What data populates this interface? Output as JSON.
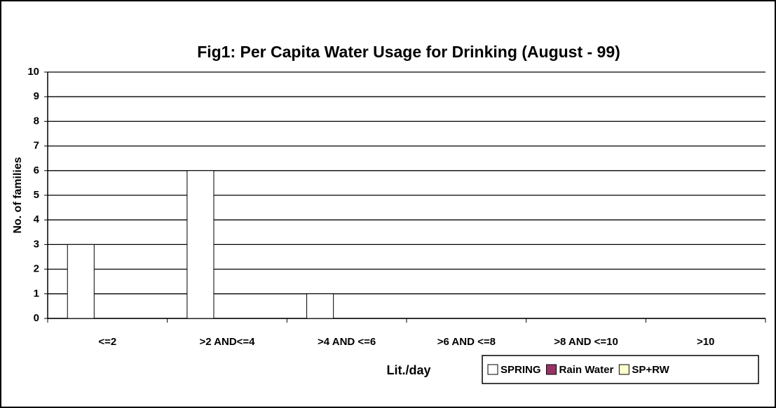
{
  "chart_data": {
    "type": "bar",
    "title": "Fig1: Per Capita Water Usage for Drinking (August - 99)",
    "x_label": "Lit./day",
    "y_label": "No. of families",
    "categories": [
      "<=2",
      ">2 AND<=4",
      ">4 AND <=6",
      ">6 AND <=8",
      ">8 AND <=10",
      ">10"
    ],
    "series": [
      {
        "name": "SPRING",
        "color": "#ffffff",
        "values": [
          3,
          6,
          1,
          0,
          0,
          0
        ]
      },
      {
        "name": "Rain Water",
        "color": "#993366",
        "values": [
          0,
          0,
          0,
          0,
          0,
          0
        ]
      },
      {
        "name": "SP+RW",
        "color": "#ffffcc",
        "values": [
          0,
          0,
          0,
          0,
          0,
          0
        ]
      }
    ],
    "ylim": [
      0,
      10
    ],
    "yticks": [
      0,
      1,
      2,
      3,
      4,
      5,
      6,
      7,
      8,
      9,
      10
    ],
    "grid": true,
    "legend": "bottom-right"
  }
}
